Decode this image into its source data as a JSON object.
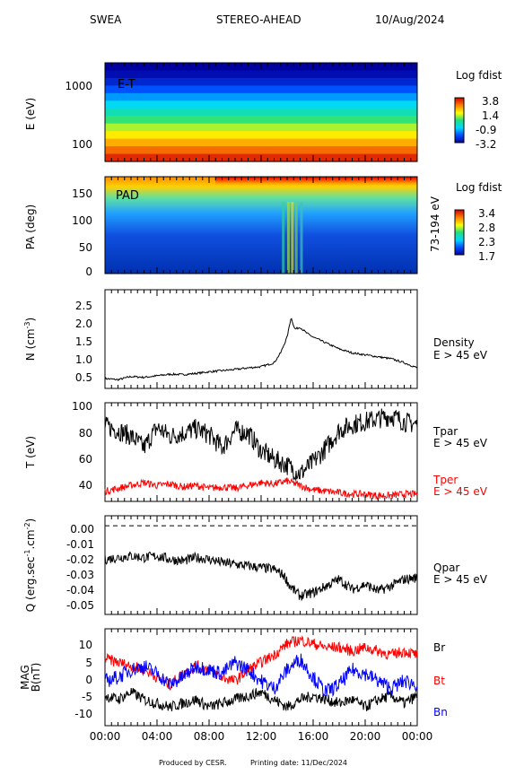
{
  "header": {
    "instrument": "SWEA",
    "spacecraft": "STEREO-AHEAD",
    "date": "10/Aug/2024"
  },
  "footer": {
    "produced_by": "Produced by CESR.",
    "printing_date": "Printing date: 11/Dec/2024"
  },
  "colors": {
    "black": "#000000",
    "red": "#ff0000",
    "blue": "#0000ff"
  },
  "chart_data": [
    {
      "type": "heatmap",
      "panel_label": "E-T",
      "ylabel": "E (eV)",
      "yscale": "log",
      "y_ticks": [
        "1000",
        "100"
      ],
      "colorbar_title": "Log fdist",
      "colorbar_ticks": [
        "3.8",
        "1.4",
        "-0.9",
        "-3.2"
      ],
      "rows": [
        {
          "energy": 1600,
          "log_fdist": -3.2
        },
        {
          "energy": 1200,
          "log_fdist": -3.0
        },
        {
          "energy": 900,
          "log_fdist": -2.6
        },
        {
          "energy": 700,
          "log_fdist": -2.0
        },
        {
          "energy": 520,
          "log_fdist": -1.4
        },
        {
          "energy": 400,
          "log_fdist": -0.8
        },
        {
          "energy": 300,
          "log_fdist": -0.2
        },
        {
          "energy": 230,
          "log_fdist": 0.4
        },
        {
          "energy": 175,
          "log_fdist": 1.0
        },
        {
          "energy": 135,
          "log_fdist": 1.6
        },
        {
          "energy": 105,
          "log_fdist": 2.2
        },
        {
          "energy": 80,
          "log_fdist": 2.8
        },
        {
          "energy": 62,
          "log_fdist": 3.4
        }
      ]
    },
    {
      "type": "heatmap",
      "panel_label": "PAD",
      "ylabel": "PA (deg)",
      "right_label": "73-194 eV",
      "y_ticks": [
        "150",
        "100",
        "50",
        "0"
      ],
      "colorbar_title": "Log fdist",
      "colorbar_ticks": [
        "3.4",
        "2.8",
        "2.3",
        "1.7"
      ],
      "ylim": [
        0,
        180
      ]
    },
    {
      "type": "line",
      "ylabel": "N (cm-3)",
      "ylim": [
        0.3,
        2.8
      ],
      "y_ticks": [
        "2.5",
        "2.0",
        "1.5",
        "1.0",
        "0.5"
      ],
      "series": [
        {
          "name": "Density",
          "label_line2": "E > 45 eV",
          "color": "#000000",
          "x_hours": [
            0,
            1,
            2,
            3,
            4,
            5,
            6,
            7,
            8,
            9,
            10,
            11,
            12,
            13,
            13.5,
            14,
            14.3,
            14.6,
            15,
            15.5,
            16,
            17,
            18,
            19,
            20,
            21,
            22,
            23,
            24
          ],
          "values": [
            0.55,
            0.52,
            0.6,
            0.58,
            0.62,
            0.66,
            0.65,
            0.68,
            0.72,
            0.75,
            0.78,
            0.82,
            0.85,
            0.95,
            1.2,
            1.6,
            2.1,
            1.8,
            1.85,
            1.7,
            1.6,
            1.45,
            1.3,
            1.2,
            1.15,
            1.1,
            1.05,
            0.95,
            0.82
          ]
        }
      ]
    },
    {
      "type": "line",
      "ylabel": "T (eV)",
      "ylim": [
        33,
        101
      ],
      "y_ticks": [
        "100",
        "80",
        "60",
        "40"
      ],
      "series": [
        {
          "name": "Tpar",
          "label_line2": "E > 45 eV",
          "color": "#000000",
          "x_hours": [
            0,
            1,
            2,
            3,
            4,
            5,
            6,
            7,
            8,
            9,
            10,
            11,
            12,
            13,
            14,
            15,
            16,
            17,
            18,
            19,
            20,
            21,
            22,
            23,
            24
          ],
          "values": [
            85,
            82,
            78,
            70,
            84,
            78,
            80,
            83,
            79,
            70,
            82,
            80,
            68,
            62,
            58,
            52,
            60,
            70,
            82,
            86,
            88,
            90,
            92,
            88,
            86
          ]
        },
        {
          "name": "Tper",
          "label_line2": "E > 45 eV",
          "color": "#ff0000",
          "x_hours": [
            0,
            1,
            2,
            3,
            4,
            5,
            6,
            7,
            8,
            9,
            10,
            11,
            12,
            13,
            14,
            15,
            16,
            17,
            18,
            19,
            20,
            21,
            22,
            23,
            24
          ],
          "values": [
            40,
            42,
            44,
            46,
            44,
            45,
            43,
            44,
            42,
            43,
            42,
            44,
            46,
            45,
            47,
            44,
            41,
            40,
            39,
            38,
            38,
            37,
            37,
            38,
            38
          ]
        }
      ]
    },
    {
      "type": "line",
      "ylabel": "Q (erg.sec-1.cm-2)",
      "ylim": [
        -0.053,
        0.006
      ],
      "y_ticks": [
        "0.00",
        "-0.01",
        "-0.02",
        "-0.03",
        "-0.04",
        "-0.05"
      ],
      "reference_line": 0.0,
      "series": [
        {
          "name": "Qpar",
          "label_line2": "E > 45 eV",
          "color": "#000000",
          "x_hours": [
            0,
            1,
            2,
            3,
            4,
            5,
            6,
            7,
            8,
            9,
            10,
            11,
            12,
            13,
            13.8,
            14.2,
            15,
            16,
            17,
            18,
            19,
            20,
            21,
            22,
            23,
            24
          ],
          "values": [
            -0.02,
            -0.019,
            -0.018,
            -0.019,
            -0.018,
            -0.02,
            -0.021,
            -0.019,
            -0.02,
            -0.022,
            -0.023,
            -0.024,
            -0.025,
            -0.026,
            -0.03,
            -0.036,
            -0.042,
            -0.04,
            -0.036,
            -0.032,
            -0.038,
            -0.035,
            -0.039,
            -0.036,
            -0.032,
            -0.031
          ]
        }
      ]
    },
    {
      "type": "line",
      "ylabel": "MAG B(nT)",
      "ylim": [
        -13,
        13
      ],
      "y_ticks": [
        "10",
        "5",
        "0",
        "-5",
        "-10"
      ],
      "x_ticks": [
        "00:00",
        "04:00",
        "08:00",
        "12:00",
        "16:00",
        "20:00",
        "00:00"
      ],
      "xlim_hours": [
        0,
        24
      ],
      "series": [
        {
          "name": "Br",
          "color": "#000000",
          "x_hours": [
            0,
            1,
            2,
            3,
            4,
            5,
            6,
            7,
            8,
            9,
            10,
            11,
            12,
            13,
            14,
            15,
            16,
            17,
            18,
            19,
            20,
            21,
            22,
            23,
            24
          ],
          "values": [
            -5,
            -6,
            -4,
            -6,
            -7,
            -8,
            -7,
            -6,
            -8,
            -7,
            -6,
            -5,
            -4,
            -6,
            -8,
            -6,
            -5,
            -6,
            -7,
            -6,
            -8,
            -6,
            -5,
            -7,
            -5
          ]
        },
        {
          "name": "Bt",
          "color": "#ff0000",
          "x_hours": [
            0,
            1,
            2,
            3,
            4,
            5,
            6,
            7,
            8,
            9,
            10,
            11,
            12,
            13,
            14,
            15,
            16,
            17,
            18,
            19,
            20,
            21,
            22,
            23,
            24
          ],
          "values": [
            5,
            4,
            3,
            2,
            0,
            -2,
            1,
            3,
            2,
            0,
            -1,
            2,
            4,
            6,
            9,
            10,
            9,
            8,
            8,
            7,
            8,
            7,
            6,
            7,
            6
          ]
        },
        {
          "name": "Bn",
          "color": "#0000ff",
          "x_hours": [
            0,
            1,
            2,
            3,
            4,
            5,
            6,
            7,
            8,
            9,
            10,
            11,
            12,
            13,
            14,
            15,
            16,
            17,
            18,
            19,
            20,
            21,
            22,
            23,
            24
          ],
          "values": [
            -1,
            0,
            2,
            3,
            1,
            -2,
            0,
            3,
            2,
            1,
            4,
            2,
            -1,
            -3,
            2,
            5,
            0,
            -4,
            -2,
            2,
            1,
            -1,
            -3,
            -1,
            -2
          ]
        }
      ]
    }
  ]
}
